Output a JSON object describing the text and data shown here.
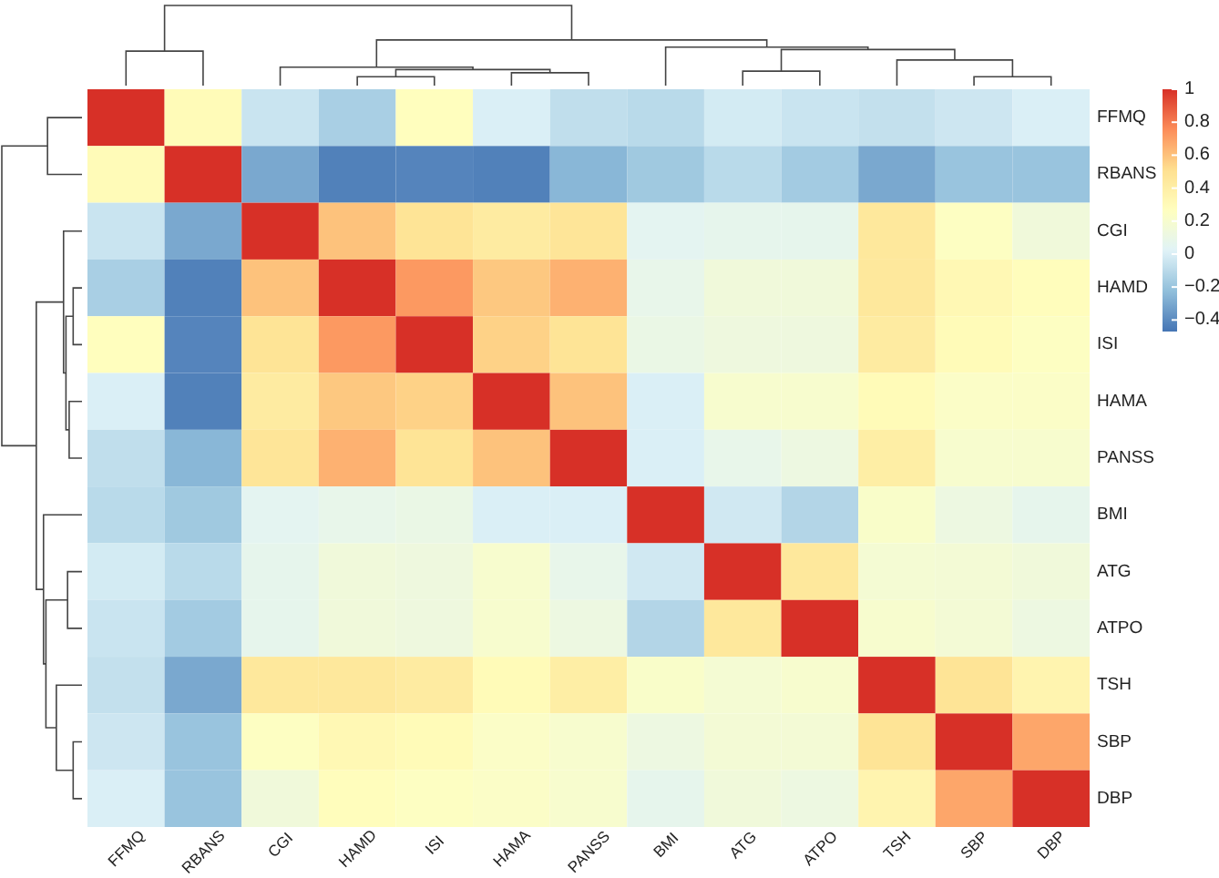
{
  "chart_data": {
    "type": "heatmap",
    "categories": [
      "FFMQ",
      "RBANS",
      "CGI",
      "HAMD",
      "ISI",
      "HAMA",
      "PANSS",
      "BMI",
      "ATG",
      "ATPO",
      "TSH",
      "SBP",
      "DBP"
    ],
    "y_categories": [
      "FFMQ",
      "RBANS",
      "CGI",
      "HAMD",
      "ISI",
      "HAMA",
      "PANSS",
      "BMI",
      "ATG",
      "ATPO",
      "TSH",
      "SBP",
      "DBP"
    ],
    "cells": [
      [
        1,
        0.3,
        -0.05,
        -0.15,
        0.27,
        0.0,
        -0.08,
        -0.1,
        -0.02,
        -0.05,
        -0.07,
        -0.04,
        0.0
      ],
      [
        0.3,
        1,
        -0.3,
        -0.43,
        -0.42,
        -0.43,
        -0.25,
        -0.18,
        -0.1,
        -0.17,
        -0.3,
        -0.2,
        -0.2
      ],
      [
        -0.05,
        -0.3,
        1,
        0.6,
        0.48,
        0.42,
        0.47,
        0.05,
        0.07,
        0.07,
        0.45,
        0.25,
        0.15
      ],
      [
        -0.15,
        -0.43,
        0.6,
        1,
        0.72,
        0.58,
        0.65,
        0.08,
        0.15,
        0.15,
        0.45,
        0.32,
        0.28
      ],
      [
        0.27,
        -0.42,
        0.48,
        0.72,
        1,
        0.55,
        0.48,
        0.1,
        0.13,
        0.13,
        0.42,
        0.3,
        0.25
      ],
      [
        0.0,
        -0.43,
        0.42,
        0.58,
        0.55,
        1,
        0.6,
        0.0,
        0.2,
        0.2,
        0.3,
        0.23,
        0.23
      ],
      [
        -0.08,
        -0.25,
        0.47,
        0.65,
        0.48,
        0.6,
        1,
        0.0,
        0.08,
        0.12,
        0.4,
        0.2,
        0.2
      ],
      [
        -0.1,
        -0.18,
        0.05,
        0.08,
        0.1,
        0.0,
        0.0,
        1,
        -0.03,
        -0.12,
        0.22,
        0.12,
        0.07
      ],
      [
        -0.02,
        -0.1,
        0.07,
        0.15,
        0.13,
        0.2,
        0.08,
        -0.03,
        1,
        0.45,
        0.18,
        0.17,
        0.15
      ],
      [
        -0.05,
        -0.17,
        0.07,
        0.15,
        0.13,
        0.2,
        0.12,
        -0.12,
        0.45,
        1,
        0.2,
        0.17,
        0.12
      ],
      [
        -0.07,
        -0.3,
        0.45,
        0.45,
        0.42,
        0.3,
        0.4,
        0.22,
        0.18,
        0.2,
        1,
        0.48,
        0.35
      ],
      [
        -0.04,
        -0.2,
        0.25,
        0.32,
        0.3,
        0.23,
        0.2,
        0.12,
        0.17,
        0.17,
        0.48,
        1,
        0.68
      ],
      [
        0.0,
        -0.2,
        0.15,
        0.28,
        0.25,
        0.23,
        0.2,
        0.07,
        0.15,
        0.12,
        0.35,
        0.68,
        1
      ]
    ],
    "clim": [
      -0.47,
      1
    ],
    "cticks": [
      1,
      0.8,
      0.6,
      0.4,
      0.2,
      0,
      {
        "value": -0.2,
        "label": "−0.2"
      },
      {
        "value": -0.4,
        "label": "−0.4"
      }
    ]
  }
}
